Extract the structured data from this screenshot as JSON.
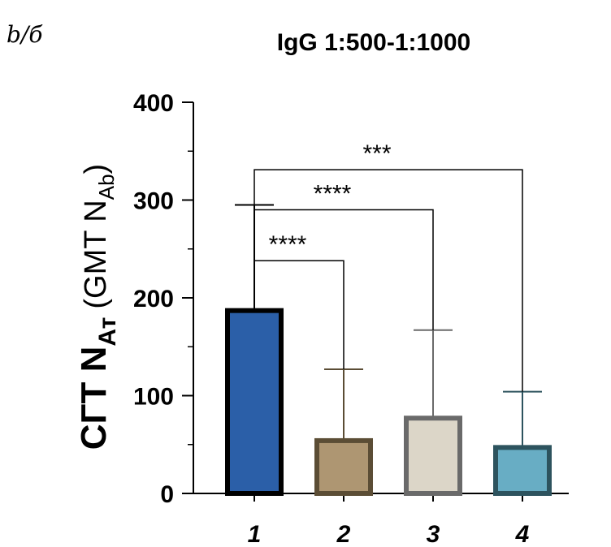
{
  "panel_label": "b/б",
  "chart_data": {
    "type": "bar",
    "title": "IgG 1:500-1:1000",
    "xlabel": "",
    "ylabel": {
      "main": "СГТ N",
      "main_sub": "Ат",
      "paren_main": "(GMT N",
      "paren_sub": "Ab",
      "paren_close": ")"
    },
    "ylim": [
      0,
      400
    ],
    "yticks": [
      0,
      100,
      200,
      300,
      400
    ],
    "yminor_step": 50,
    "categories": [
      "1",
      "2",
      "3",
      "4"
    ],
    "series": [
      {
        "name": "GMT",
        "values": [
          187,
          54,
          77,
          47
        ],
        "errors": [
          295,
          127,
          167,
          104
        ],
        "fill_colors": [
          "#2b5fa8",
          "#ae9672",
          "#dcd6c8",
          "#68adc4"
        ],
        "edge_colors": [
          "#000000",
          "#5b4d35",
          "#6a6a6a",
          "#2d535e"
        ]
      }
    ],
    "significance": [
      {
        "from": "1",
        "to": "2",
        "height": 238,
        "label": "****"
      },
      {
        "from": "1",
        "to": "3",
        "height": 290,
        "label": "****"
      },
      {
        "from": "1",
        "to": "4",
        "height": 331,
        "label": "***"
      }
    ]
  }
}
